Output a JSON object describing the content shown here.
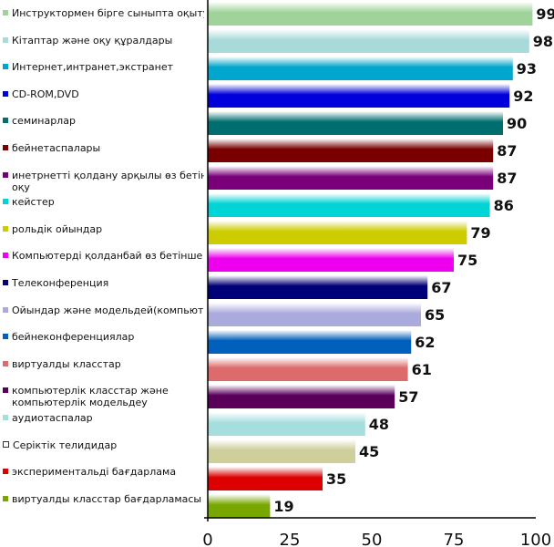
{
  "chart_data": {
    "type": "bar",
    "orientation": "horizontal",
    "categories": [
      "Инструктормен бірге сыныпта оқыту",
      "Кітаптар және оқу құралдары",
      "Интернет,интранет,экстранет",
      "CD-ROM,DVD",
      "семинарлар",
      "бейнетаспалары",
      "инетрнетті қолдану арқылы өз бетінше оқу",
      "кейстер",
      "рольдік ойындар",
      "Компьютерді қолданбай өз бетінше оқу",
      "Телеконференция",
      "Ойындар және модельдей(компьютерсіз)",
      "бейнеконференциялар",
      "виртуалды класстар",
      "компьютерлік класстар және компьютерлік модельдеу",
      "аудиотаспалар",
      "Серіктік телидидар",
      "экспериментальді бағдарлама",
      "виртуалды класстар бағдарламасы"
    ],
    "legend_labels": [
      "Инструктормен бірге сыныпта оқыту",
      "Кітаптар және оқу құралдары",
      "Интернет,интранет,экстранет",
      "CD-ROM,DVD",
      "семинарлар",
      "бейнетаспалары",
      "инетрнетті қолдану арқылы өз бетін оқу",
      "кейстер",
      "рольдік ойындар",
      "Компьютерді қолданбай өз бетінше",
      "Телеконференция",
      "Ойындар және модельдей(компьюте",
      "бейнеконференциялар",
      "виртуалды класстар",
      "компьютерлік класстар және компьютерлік модельдеу",
      "аудиотаспалар",
      "Серіктік телидидар",
      "экспериментальді бағдарлама",
      "виртуалды класстар бағдарламасы"
    ],
    "values": [
      99,
      98,
      93,
      92,
      90,
      87,
      87,
      86,
      79,
      75,
      67,
      65,
      62,
      61,
      57,
      48,
      45,
      35,
      19
    ],
    "colors": [
      "#9fd39a",
      "#a9dada",
      "#00a6cc",
      "#0000dd",
      "#006e6e",
      "#7a0000",
      "#7a007a",
      "#00d4d4",
      "#cccc00",
      "#ee00ee",
      "#000078",
      "#aaaadd",
      "#0060bb",
      "#dd6b6b",
      "#5a005a",
      "#a6dede",
      "#cfcf9c",
      "#dd0000",
      "#78a800"
    ],
    "xlim": [
      0,
      100
    ],
    "xticks": [
      0,
      25,
      50,
      75,
      100
    ],
    "legend_position": "left",
    "grid": false
  }
}
